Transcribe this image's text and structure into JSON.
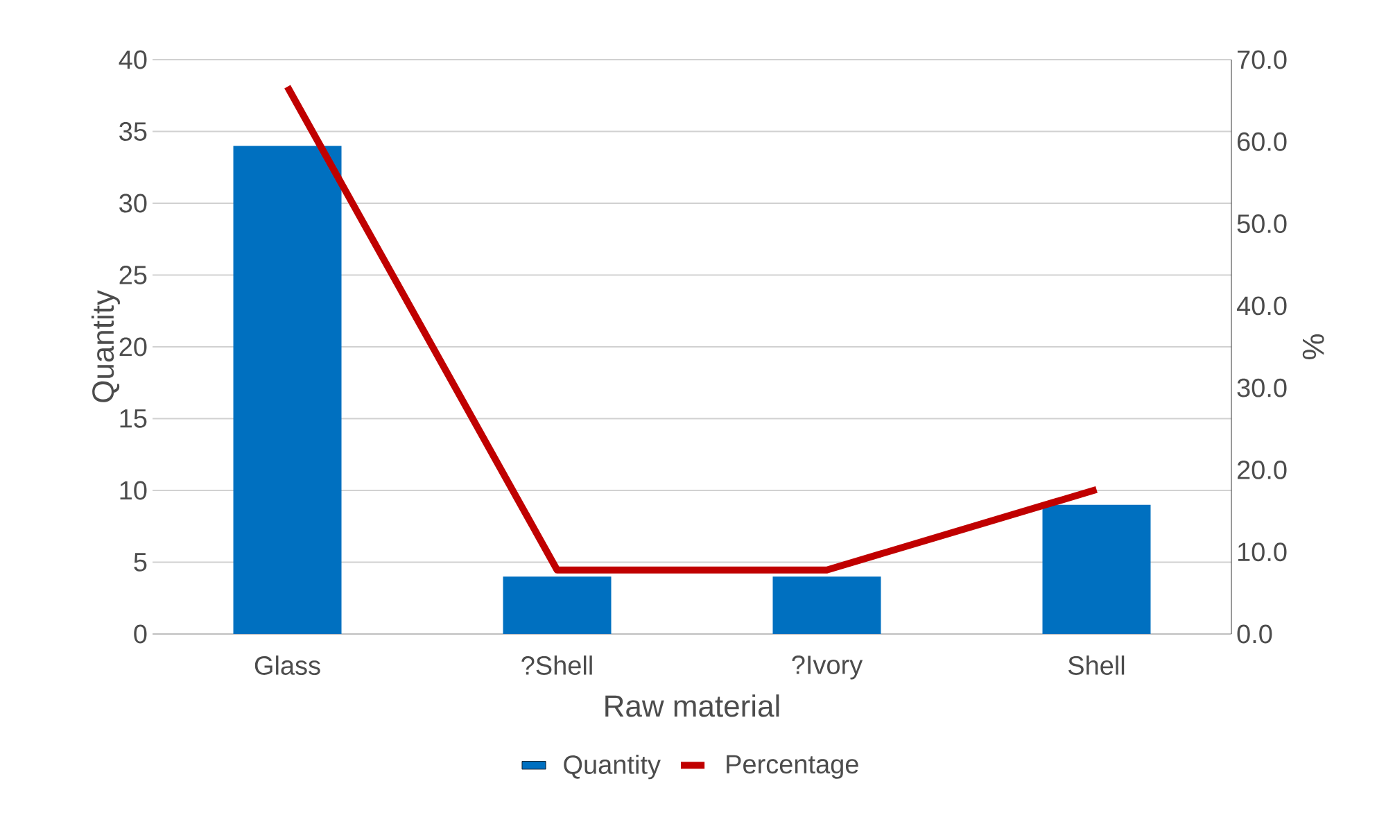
{
  "chart_data": {
    "type": "bar",
    "xlabel": "Raw material",
    "ylabel": "Quantity",
    "y2label": "%",
    "categories": [
      "Glass",
      "?Shell",
      "?Ivory",
      "Shell"
    ],
    "series": [
      {
        "name": "Quantity",
        "color": "#0070c0",
        "values": [
          34,
          4,
          4,
          9
        ]
      },
      {
        "name": "Percentage",
        "type": "line",
        "axis": "y2",
        "color": "#c00000",
        "values": [
          66.7,
          7.8,
          7.8,
          17.6
        ]
      }
    ],
    "ylim": [
      0,
      40
    ],
    "yticks": [
      0,
      5,
      10,
      15,
      20,
      25,
      30,
      35,
      40
    ],
    "y2lim": [
      0,
      70
    ],
    "y2ticks": [
      {
        "value": 0,
        "label": "0.0"
      },
      {
        "value": 10,
        "label": "10.0"
      },
      {
        "value": 20,
        "label": "20.0"
      },
      {
        "value": 30,
        "label": "30.0"
      },
      {
        "value": 40,
        "label": "40.0"
      },
      {
        "value": 50,
        "label": "50.0"
      },
      {
        "value": 60,
        "label": "60.0"
      },
      {
        "value": 70,
        "label": "70.0"
      }
    ],
    "grid": "y",
    "legend": "bottom",
    "marker": "none"
  }
}
